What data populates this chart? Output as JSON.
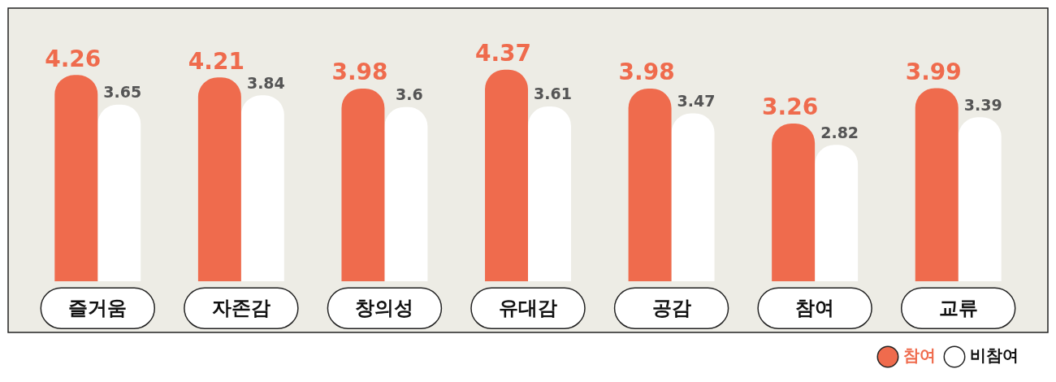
{
  "chart_data": {
    "type": "bar",
    "categories": [
      "즐거움",
      "자존감",
      "창의성",
      "유대감",
      "공감",
      "참여",
      "교류"
    ],
    "series": [
      {
        "name": "참여",
        "color": "#ef6b4d",
        "values": [
          4.26,
          4.21,
          3.98,
          4.37,
          3.98,
          3.26,
          3.99
        ]
      },
      {
        "name": "비참여",
        "color": "#ffffff",
        "values": [
          3.65,
          3.84,
          3.6,
          3.61,
          3.47,
          2.82,
          3.39
        ]
      }
    ],
    "data_labels": true,
    "legend": "bottom right",
    "grid": false,
    "tick_labels": "x"
  }
}
